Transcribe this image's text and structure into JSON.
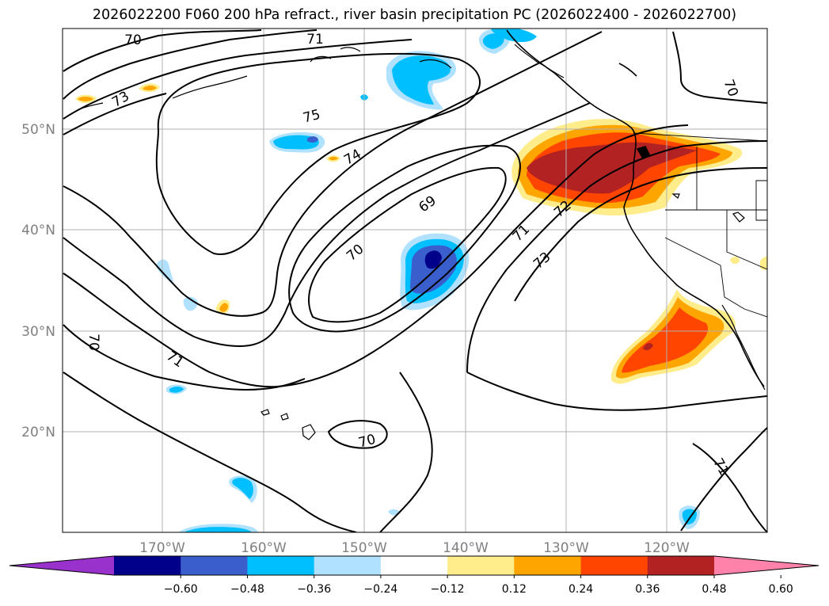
{
  "title": "2026022200 F060 200 hPa refract., river basin precipitation PC (2026022400 - 2026022700)",
  "map": {
    "lon_range": [
      -180,
      -110
    ],
    "lat_range": [
      10,
      60
    ],
    "latitude_labels": [
      "50°N",
      "40°N",
      "30°N",
      "20°N"
    ],
    "longitude_labels": [
      "170°W",
      "160°W",
      "150°W",
      "140°W",
      "130°W",
      "120°W"
    ],
    "contour_labels": [
      "70",
      "71",
      "73",
      "75",
      "74",
      "69",
      "70",
      "71",
      "72",
      "73",
      "70",
      "71",
      "70",
      "71",
      "70"
    ]
  },
  "colorbar": {
    "ticks": [
      "−0.60",
      "−0.48",
      "−0.36",
      "−0.24",
      "−0.12",
      "0.12",
      "0.24",
      "0.36",
      "0.48",
      "0.60"
    ],
    "colors": [
      "#9932cc",
      "#00008b",
      "#3a5fcd",
      "#00bfff",
      "#b0e2ff",
      "#ffffff",
      "#ffec8b",
      "#ffa500",
      "#ff4500",
      "#b22222",
      "#ff82ab"
    ]
  }
}
